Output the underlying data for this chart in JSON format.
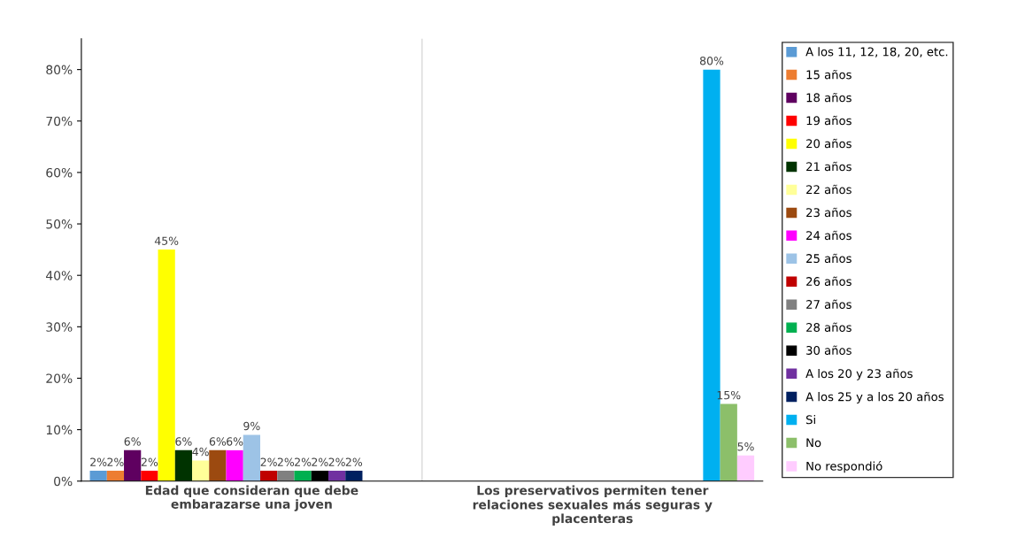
{
  "chart_data": {
    "type": "bar",
    "categories": [
      "Edad que consideran que debe\nembarazarse una joven",
      "Los preservativos permiten tener\nrelaciones sexuales más seguras y\nplacenteras"
    ],
    "ylim": [
      0,
      86
    ],
    "yticks": [
      {
        "value": 0,
        "label": "0%"
      },
      {
        "value": 10,
        "label": "10%"
      },
      {
        "value": 20,
        "label": "20%"
      },
      {
        "value": 30,
        "label": "30%"
      },
      {
        "value": 40,
        "label": "40%"
      },
      {
        "value": 50,
        "label": "50%"
      },
      {
        "value": 60,
        "label": "60%"
      },
      {
        "value": 70,
        "label": "70%"
      },
      {
        "value": 80,
        "label": "80%"
      }
    ],
    "legend": "right",
    "series": [
      {
        "name": "A los 11, 12, 18, 20, etc.",
        "color": "#5b9bd5",
        "values": [
          2,
          null
        ],
        "value_labels": [
          "2%",
          null
        ]
      },
      {
        "name": "15 años",
        "color": "#ed7d31",
        "values": [
          2,
          null
        ],
        "value_labels": [
          "2%",
          null
        ]
      },
      {
        "name": "18 años",
        "color": "#5f0060",
        "values": [
          6,
          null
        ],
        "value_labels": [
          "6%",
          null
        ]
      },
      {
        "name": "19 años",
        "color": "#ff0000",
        "values": [
          2,
          null
        ],
        "value_labels": [
          "2%",
          null
        ]
      },
      {
        "name": "20 años",
        "color": "#ffff00",
        "values": [
          45,
          null
        ],
        "value_labels": [
          "45%",
          null
        ]
      },
      {
        "name": "21 años",
        "color": "#003300",
        "values": [
          6,
          null
        ],
        "value_labels": [
          "6%",
          null
        ]
      },
      {
        "name": "22 años",
        "color": "#ffff99",
        "values": [
          4,
          null
        ],
        "value_labels": [
          "4%",
          null
        ]
      },
      {
        "name": "23 años",
        "color": "#9c4a10",
        "values": [
          6,
          null
        ],
        "value_labels": [
          "6%",
          null
        ]
      },
      {
        "name": "24 años",
        "color": "#ff00ff",
        "values": [
          6,
          null
        ],
        "value_labels": [
          "6%",
          null
        ]
      },
      {
        "name": "25 años",
        "color": "#9dc3e6",
        "values": [
          9,
          null
        ],
        "value_labels": [
          "9%",
          null
        ]
      },
      {
        "name": "26 años",
        "color": "#c00000",
        "values": [
          2,
          null
        ],
        "value_labels": [
          "2%",
          null
        ]
      },
      {
        "name": "27 años",
        "color": "#808080",
        "values": [
          2,
          null
        ],
        "value_labels": [
          "2%",
          null
        ]
      },
      {
        "name": "28 años",
        "color": "#00b050",
        "values": [
          2,
          null
        ],
        "value_labels": [
          "2%",
          null
        ]
      },
      {
        "name": "30 años",
        "color": "#000000",
        "values": [
          2,
          null
        ],
        "value_labels": [
          "2%",
          null
        ]
      },
      {
        "name": "A los 20 y 23 años",
        "color": "#7030a0",
        "values": [
          2,
          null
        ],
        "value_labels": [
          "2%",
          null
        ]
      },
      {
        "name": "A los 25 y a los 20 años",
        "color": "#002060",
        "values": [
          2,
          null
        ],
        "value_labels": [
          "2%",
          null
        ]
      },
      {
        "name": "Si",
        "color": "#00b0f0",
        "values": [
          null,
          80
        ],
        "value_labels": [
          null,
          "80%"
        ]
      },
      {
        "name": "No",
        "color": "#8cbf6a",
        "values": [
          null,
          15
        ],
        "value_labels": [
          null,
          "15%"
        ]
      },
      {
        "name": "No respondió",
        "color": "#ffccff",
        "values": [
          null,
          5
        ],
        "value_labels": [
          null,
          "5%"
        ]
      }
    ]
  }
}
